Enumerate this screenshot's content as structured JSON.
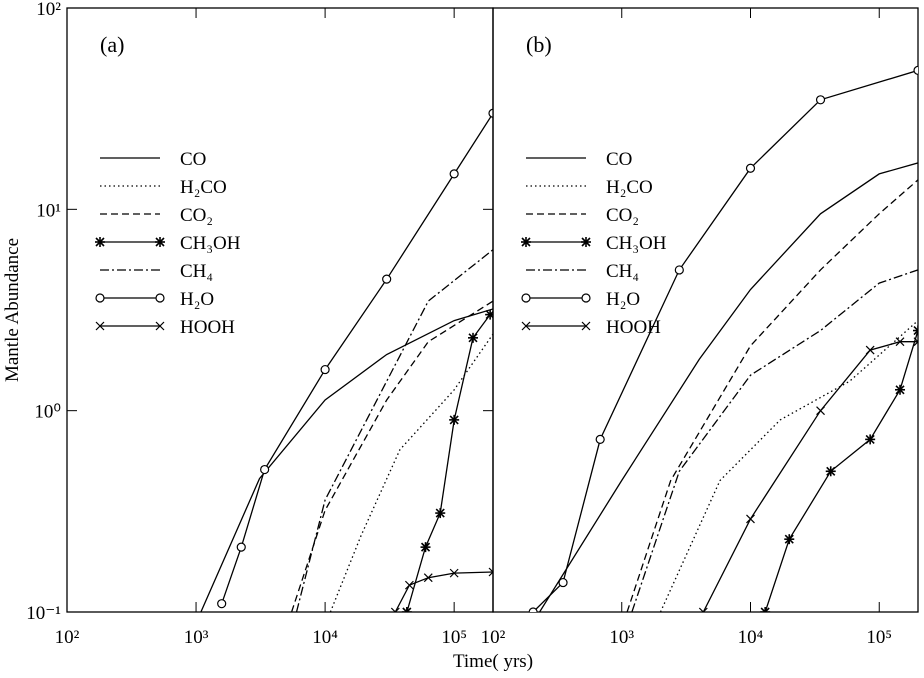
{
  "chart_data": [
    {
      "type": "line",
      "panel_label": "(a)",
      "ylabel": "Mantle Abundance",
      "xlabel": "Time( yrs)",
      "log_x": true,
      "log_y": true,
      "legend": "center left",
      "xlim": [
        100,
        200000
      ],
      "xticks": [
        {
          "value": 100,
          "label": "10²"
        },
        {
          "value": 1000,
          "label": "10³"
        },
        {
          "value": 10000,
          "label": "10⁴"
        },
        {
          "value": 100000,
          "label": "10⁵"
        }
      ],
      "ylim": [
        0.1,
        100
      ],
      "yticks": [
        {
          "value": 0.1,
          "label": "10⁻¹"
        },
        {
          "value": 1,
          "label": "10⁰"
        },
        {
          "value": 10,
          "label": "10¹"
        },
        {
          "value": 100,
          "label": "10²"
        }
      ],
      "series": [
        {
          "name": "CO",
          "color": "#000000",
          "dash": "solid",
          "marker": null,
          "x": [
            1090,
            3100,
            10000,
            30000,
            100000,
            200000
          ],
          "values": [
            0.1,
            0.46,
            1.13,
            1.9,
            2.8,
            3.2
          ]
        },
        {
          "name": "H₂CO",
          "color": "#000000",
          "dash": "dotted",
          "marker": null,
          "x": [
            11000,
            19000,
            38000,
            100000,
            200000
          ],
          "values": [
            0.1,
            0.24,
            0.64,
            1.27,
            2.4
          ]
        },
        {
          "name": "CO₂",
          "color": "#000000",
          "dash": "dashed",
          "marker": null,
          "x": [
            5500,
            10000,
            30000,
            63000,
            200000
          ],
          "values": [
            0.1,
            0.32,
            1.13,
            2.2,
            3.5
          ]
        },
        {
          "name": "CH₃OH",
          "color": "#000000",
          "dash": "solid",
          "marker": "star",
          "x": [
            43000,
            60000,
            78000,
            100000,
            140000,
            190000
          ],
          "values": [
            0.1,
            0.21,
            0.31,
            0.9,
            2.3,
            3.0
          ]
        },
        {
          "name": "CH₄",
          "color": "#000000",
          "dash": "dashdot",
          "marker": null,
          "x": [
            6000,
            10000,
            30000,
            63000,
            200000
          ],
          "values": [
            0.1,
            0.36,
            1.4,
            3.5,
            6.3
          ]
        },
        {
          "name": "H₂O",
          "color": "#000000",
          "dash": "solid",
          "marker": "circle",
          "x": [
            1580,
            2240,
            3400,
            10000,
            30000,
            100000,
            200000
          ],
          "values": [
            0.11,
            0.21,
            0.51,
            1.6,
            4.5,
            15,
            30
          ]
        },
        {
          "name": "HOOH",
          "color": "#000000",
          "dash": "solid",
          "marker": "x",
          "x": [
            35000,
            45000,
            63000,
            100000,
            200000
          ],
          "values": [
            0.1,
            0.136,
            0.148,
            0.156,
            0.158
          ]
        }
      ]
    },
    {
      "type": "line",
      "panel_label": "(b)",
      "log_x": true,
      "log_y": true,
      "legend": "center left",
      "xlim": [
        100,
        200000
      ],
      "xticks": [
        {
          "value": 100,
          "label": "10²"
        },
        {
          "value": 1000,
          "label": "10³"
        },
        {
          "value": 10000,
          "label": "10⁴"
        },
        {
          "value": 100000,
          "label": "10⁵"
        }
      ],
      "ylim": [
        0.1,
        100
      ],
      "series": [
        {
          "name": "CO",
          "color": "#000000",
          "dash": "solid",
          "marker": null,
          "x": [
            230,
            1000,
            4000,
            10000,
            35000,
            100000,
            200000
          ],
          "values": [
            0.1,
            0.45,
            1.8,
            4,
            9.5,
            15,
            17
          ]
        },
        {
          "name": "H₂CO",
          "color": "#000000",
          "dash": "dotted",
          "marker": null,
          "x": [
            2000,
            5800,
            17000,
            59000,
            200000
          ],
          "values": [
            0.1,
            0.45,
            0.9,
            1.4,
            2.8
          ]
        },
        {
          "name": "CO₂",
          "color": "#000000",
          "dash": "dashed",
          "marker": null,
          "x": [
            1100,
            2400,
            10000,
            35000,
            100000,
            200000
          ],
          "values": [
            0.1,
            0.45,
            2.1,
            5,
            9.5,
            14
          ]
        },
        {
          "name": "CH₃OH",
          "color": "#000000",
          "dash": "solid",
          "marker": "star",
          "x": [
            13000,
            20000,
            42000,
            85000,
            145000,
            200000
          ],
          "values": [
            0.1,
            0.23,
            0.5,
            0.72,
            1.27,
            2.5
          ]
        },
        {
          "name": "CH₄",
          "color": "#000000",
          "dash": "dashdot",
          "marker": null,
          "x": [
            1200,
            2800,
            10000,
            35000,
            100000,
            200000
          ],
          "values": [
            0.1,
            0.5,
            1.5,
            2.5,
            4.3,
            5
          ]
        },
        {
          "name": "H₂O",
          "color": "#000000",
          "dash": "solid",
          "marker": "circle",
          "x": [
            205,
            350,
            680,
            2800,
            10000,
            35000,
            200000
          ],
          "values": [
            0.1,
            0.14,
            0.72,
            5,
            16,
            35,
            49
          ]
        },
        {
          "name": "HOOH",
          "color": "#000000",
          "dash": "solid",
          "marker": "x",
          "x": [
            4300,
            10000,
            35000,
            85000,
            145000,
            200000
          ],
          "values": [
            0.1,
            0.29,
            1.0,
            2.0,
            2.2,
            2.2
          ]
        }
      ]
    }
  ]
}
